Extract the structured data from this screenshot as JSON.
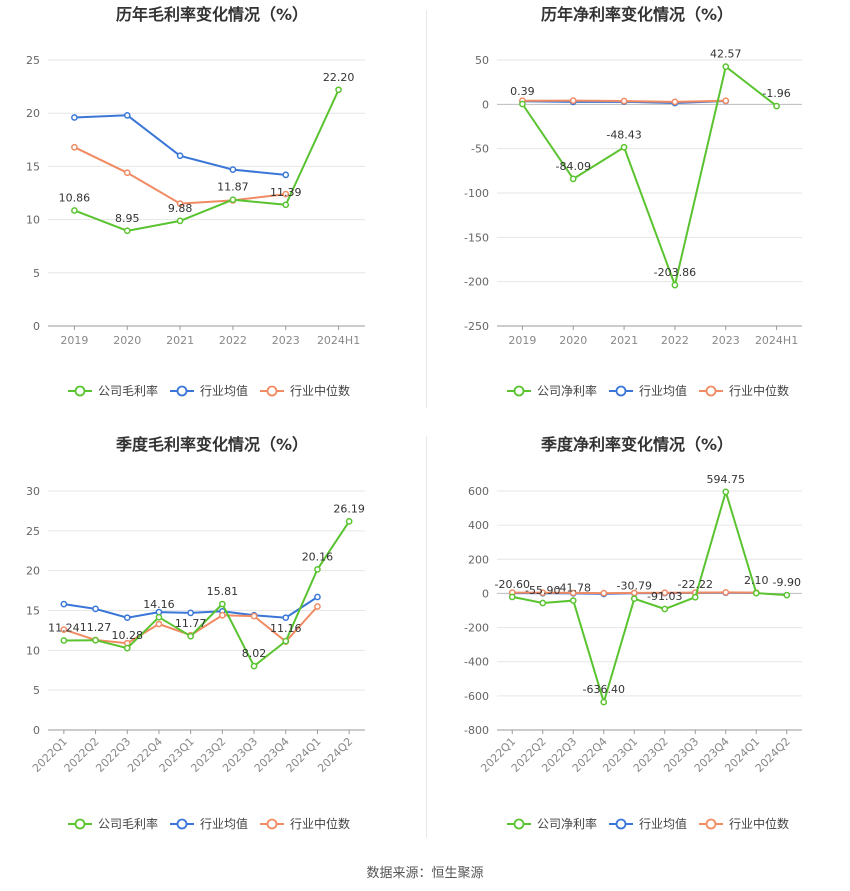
{
  "source": "数据来源：恒生聚源",
  "colors": {
    "company": "#5ac330",
    "industry_avg": "#3a76d8",
    "industry_median": "#f08b63"
  },
  "chart_data": [
    {
      "type": "line",
      "title": "历年毛利率变化情况（%）",
      "categories": [
        "2019",
        "2020",
        "2021",
        "2022",
        "2023",
        "2024H1"
      ],
      "ylim": [
        0,
        25
      ],
      "yticks": [
        0,
        5,
        10,
        15,
        20,
        25
      ],
      "series": [
        {
          "name": "公司毛利率",
          "values": [
            10.86,
            8.95,
            9.88,
            11.87,
            11.39,
            22.2
          ],
          "labels": [
            "10.86",
            "8.95",
            "9.88",
            "11.87",
            "11.39",
            "22.20"
          ]
        },
        {
          "name": "行业均值",
          "values": [
            19.6,
            19.8,
            16.0,
            14.7,
            14.2,
            null
          ]
        },
        {
          "name": "行业中位数",
          "values": [
            16.8,
            14.4,
            11.5,
            11.8,
            12.4,
            null
          ]
        }
      ]
    },
    {
      "type": "line",
      "title": "历年净利率变化情况（%）",
      "categories": [
        "2019",
        "2020",
        "2021",
        "2022",
        "2023",
        "2024H1"
      ],
      "ylim": [
        -250,
        50
      ],
      "yticks": [
        -250,
        -200,
        -150,
        -100,
        -50,
        0,
        50
      ],
      "series": [
        {
          "name": "公司净利率",
          "values": [
            0.39,
            -84.09,
            -48.43,
            -203.86,
            42.57,
            -1.96
          ],
          "labels": [
            "0.39",
            "-84.09",
            "-48.43",
            "-203.86",
            "42.57",
            "-1.96"
          ]
        },
        {
          "name": "行业均值",
          "values": [
            3.5,
            2.8,
            3.0,
            1.5,
            3.8,
            null
          ]
        },
        {
          "name": "行业中位数",
          "values": [
            4.0,
            4.2,
            3.8,
            2.8,
            4.0,
            null
          ]
        }
      ]
    },
    {
      "type": "line",
      "title": "季度毛利率变化情况（%）",
      "categories": [
        "2022Q1",
        "2022Q2",
        "2022Q3",
        "2022Q4",
        "2023Q1",
        "2023Q2",
        "2023Q3",
        "2023Q4",
        "2024Q1",
        "2024Q2"
      ],
      "ylim": [
        0,
        30
      ],
      "yticks": [
        0,
        5,
        10,
        15,
        20,
        25,
        30
      ],
      "series": [
        {
          "name": "公司毛利率",
          "values": [
            11.24,
            11.27,
            10.28,
            14.16,
            11.77,
            15.81,
            8.02,
            11.16,
            20.16,
            26.19
          ],
          "labels": [
            "11.24",
            "11.27",
            "10.28",
            "14.16",
            "11.77",
            "15.81",
            "8.02",
            "11.16",
            "20.16",
            "26.19"
          ]
        },
        {
          "name": "行业均值",
          "values": [
            15.8,
            15.2,
            14.1,
            14.8,
            14.7,
            14.9,
            14.4,
            14.1,
            16.7,
            null
          ]
        },
        {
          "name": "行业中位数",
          "values": [
            12.6,
            11.3,
            10.9,
            13.3,
            11.9,
            14.4,
            14.3,
            11.1,
            15.5,
            null
          ]
        }
      ]
    },
    {
      "type": "line",
      "title": "季度净利率变化情况（%）",
      "categories": [
        "2022Q1",
        "2022Q2",
        "2022Q3",
        "2022Q4",
        "2023Q1",
        "2023Q2",
        "2023Q3",
        "2023Q4",
        "2024Q1",
        "2024Q2"
      ],
      "ylim": [
        -800,
        600
      ],
      "yticks": [
        -800,
        -600,
        -400,
        -200,
        0,
        200,
        400,
        600
      ],
      "series": [
        {
          "name": "公司净利率",
          "values": [
            -20.6,
            -55.9,
            -41.78,
            -636.4,
            -30.79,
            -91.03,
            -22.22,
            594.75,
            2.1,
            -9.9
          ],
          "labels": [
            "-20.60",
            "-55.90",
            "-41.78",
            "-636.40",
            "-30.79",
            "-91.03",
            "-22.22",
            "594.75",
            "2.10",
            "-9.90"
          ]
        },
        {
          "name": "行业均值",
          "values": [
            2,
            1,
            0,
            -3,
            1,
            2,
            3,
            4,
            3,
            null
          ]
        },
        {
          "name": "行业中位数",
          "values": [
            5,
            4,
            3,
            2,
            3,
            4,
            5,
            6,
            5,
            null
          ]
        }
      ]
    }
  ]
}
